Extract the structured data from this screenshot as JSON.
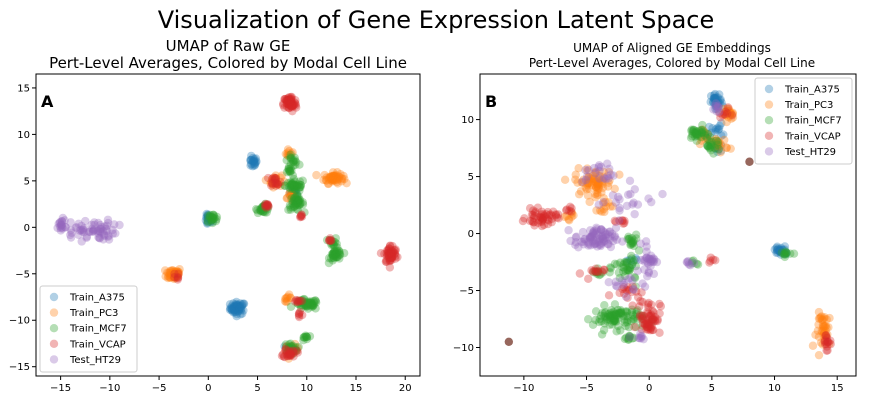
{
  "figure": {
    "suptitle": "Visualization of Gene Expression Latent Space"
  },
  "chart_data": [
    {
      "type": "scatter",
      "panel_label": "A",
      "title_line1": "UMAP of Raw GE",
      "title_line2": "Pert-Level Averages, Colored by Modal Cell Line",
      "xlim": [
        -17.5,
        21.5
      ],
      "ylim": [
        -16,
        16.5
      ],
      "xticks": [
        -15,
        -10,
        -5,
        0,
        5,
        10,
        15,
        20
      ],
      "yticks": [
        -15,
        -10,
        -5,
        0,
        5,
        10,
        15
      ],
      "legend": {
        "placement": "lower-left"
      },
      "series": [
        {
          "name": "Train_A375",
          "color": "#1f77b4",
          "clusters": [
            {
              "cx": 3.0,
              "cy": -8.7,
              "rx": 0.7,
              "ry": 0.6,
              "n": 55
            },
            {
              "cx": 4.5,
              "cy": 7.0,
              "rx": 0.4,
              "ry": 0.5,
              "n": 20
            },
            {
              "cx": 0.0,
              "cy": 0.8,
              "rx": 0.4,
              "ry": 0.6,
              "n": 20
            },
            {
              "cx": 8.7,
              "cy": 3.8,
              "rx": 0.4,
              "ry": 0.4,
              "n": 12
            },
            {
              "cx": 8.0,
              "cy": -13.0,
              "rx": 0.3,
              "ry": 0.3,
              "n": 8
            }
          ]
        },
        {
          "name": "Train_PC3",
          "color": "#ff7f0e",
          "clusters": [
            {
              "cx": -3.5,
              "cy": -5.0,
              "rx": 0.7,
              "ry": 0.6,
              "n": 50
            },
            {
              "cx": 12.7,
              "cy": 5.3,
              "rx": 0.9,
              "ry": 0.5,
              "n": 55
            },
            {
              "cx": 6.8,
              "cy": 5.0,
              "rx": 0.6,
              "ry": 0.6,
              "n": 25
            },
            {
              "cx": 8.2,
              "cy": 8.0,
              "rx": 0.4,
              "ry": 0.4,
              "n": 10
            },
            {
              "cx": 8.5,
              "cy": -13.2,
              "rx": 0.6,
              "ry": 0.5,
              "n": 25
            },
            {
              "cx": 8.0,
              "cy": -7.6,
              "rx": 0.4,
              "ry": 0.3,
              "n": 10
            },
            {
              "cx": 8.5,
              "cy": 3.2,
              "rx": 0.6,
              "ry": 0.5,
              "n": 15
            }
          ]
        },
        {
          "name": "Train_MCF7",
          "color": "#2ca02c",
          "clusters": [
            {
              "cx": 8.9,
              "cy": 2.6,
              "rx": 0.7,
              "ry": 0.7,
              "n": 40
            },
            {
              "cx": 8.8,
              "cy": 4.5,
              "rx": 0.9,
              "ry": 0.6,
              "n": 40
            },
            {
              "cx": 10.0,
              "cy": -8.3,
              "rx": 1.1,
              "ry": 0.5,
              "n": 45
            },
            {
              "cx": 13.0,
              "cy": -3.0,
              "rx": 0.6,
              "ry": 0.6,
              "n": 35
            },
            {
              "cx": 12.7,
              "cy": -1.6,
              "rx": 0.4,
              "ry": 0.4,
              "n": 12
            },
            {
              "cx": 5.6,
              "cy": 2.0,
              "rx": 0.6,
              "ry": 0.4,
              "n": 25
            },
            {
              "cx": 0.4,
              "cy": 1.0,
              "rx": 0.6,
              "ry": 0.4,
              "n": 20
            },
            {
              "cx": 8.6,
              "cy": 7.2,
              "rx": 0.5,
              "ry": 0.5,
              "n": 15
            },
            {
              "cx": 9.8,
              "cy": -11.9,
              "rx": 0.3,
              "ry": 0.4,
              "n": 10
            },
            {
              "cx": 8.4,
              "cy": -13.0,
              "rx": 0.6,
              "ry": 0.5,
              "n": 20
            },
            {
              "cx": 8.2,
              "cy": 6.2,
              "rx": 0.4,
              "ry": 0.4,
              "n": 10
            }
          ]
        },
        {
          "name": "Train_VCAP",
          "color": "#d62728",
          "clusters": [
            {
              "cx": 8.3,
              "cy": 13.3,
              "rx": 0.6,
              "ry": 0.8,
              "n": 60
            },
            {
              "cx": 18.5,
              "cy": -2.9,
              "rx": 0.6,
              "ry": 0.9,
              "n": 55
            },
            {
              "cx": 8.3,
              "cy": -13.5,
              "rx": 0.6,
              "ry": 0.5,
              "n": 25
            },
            {
              "cx": 6.8,
              "cy": 5.0,
              "rx": 0.5,
              "ry": 0.5,
              "n": 15
            },
            {
              "cx": 5.8,
              "cy": 2.3,
              "rx": 0.4,
              "ry": 0.3,
              "n": 10
            },
            {
              "cx": 9.5,
              "cy": 1.2,
              "rx": 0.3,
              "ry": 0.3,
              "n": 6
            },
            {
              "cx": 12.3,
              "cy": -1.3,
              "rx": 0.3,
              "ry": 0.3,
              "n": 6
            },
            {
              "cx": 9.2,
              "cy": -9.5,
              "rx": 0.3,
              "ry": 0.3,
              "n": 6
            },
            {
              "cx": -3.3,
              "cy": -5.3,
              "rx": 0.3,
              "ry": 0.3,
              "n": 6
            },
            {
              "cx": 9.0,
              "cy": -8.0,
              "rx": 0.4,
              "ry": 0.3,
              "n": 8
            }
          ]
        },
        {
          "name": "Test_HT29",
          "color": "#9467bd",
          "clusters": [
            {
              "cx": -12.2,
              "cy": -0.3,
              "rx": 2.6,
              "ry": 1.0,
              "n": 70
            },
            {
              "cx": -15.0,
              "cy": 0.3,
              "rx": 0.5,
              "ry": 0.6,
              "n": 10
            }
          ]
        }
      ]
    },
    {
      "type": "scatter",
      "panel_label": "B",
      "title_line1": "UMAP of Aligned GE Embeddings",
      "title_line2": "Pert-Level Averages, Colored by Modal Cell Line",
      "xlim": [
        -13.5,
        16.5
      ],
      "ylim": [
        -12.5,
        14
      ],
      "xticks": [
        -10,
        -5,
        0,
        5,
        10,
        15
      ],
      "yticks": [
        -10,
        -5,
        0,
        5,
        10
      ],
      "legend": {
        "placement": "top-right"
      },
      "series": [
        {
          "name": "Train_A375",
          "color": "#1f77b4",
          "clusters": [
            {
              "cx": 5.4,
              "cy": 11.5,
              "rx": 0.4,
              "ry": 0.7,
              "n": 35
            },
            {
              "cx": 10.5,
              "cy": -1.5,
              "rx": 0.6,
              "ry": 0.4,
              "n": 25
            },
            {
              "cx": 5.2,
              "cy": 9.0,
              "rx": 0.6,
              "ry": 0.6,
              "n": 15
            },
            {
              "cx": -1.2,
              "cy": -2.4,
              "rx": 0.6,
              "ry": 0.3,
              "n": 6
            },
            {
              "cx": 5.5,
              "cy": 7.5,
              "rx": 0.4,
              "ry": 0.4,
              "n": 8
            }
          ]
        },
        {
          "name": "Train_PC3",
          "color": "#ff7f0e",
          "clusters": [
            {
              "cx": -4.4,
              "cy": 4.5,
              "rx": 1.4,
              "ry": 1.0,
              "n": 70
            },
            {
              "cx": 6.3,
              "cy": 10.5,
              "rx": 0.4,
              "ry": 0.5,
              "n": 20
            },
            {
              "cx": 14.0,
              "cy": -8.5,
              "rx": 0.6,
              "ry": 1.4,
              "n": 40
            },
            {
              "cx": 5.5,
              "cy": 7.8,
              "rx": 0.7,
              "ry": 0.6,
              "n": 20
            },
            {
              "cx": -3.5,
              "cy": 2.5,
              "rx": 0.6,
              "ry": 0.5,
              "n": 12
            },
            {
              "cx": -6.5,
              "cy": 1.5,
              "rx": 0.5,
              "ry": 0.4,
              "n": 8
            },
            {
              "cx": 4.4,
              "cy": 8.6,
              "rx": 0.5,
              "ry": 0.5,
              "n": 10
            }
          ]
        },
        {
          "name": "Train_MCF7",
          "color": "#2ca02c",
          "clusters": [
            {
              "cx": -2.5,
              "cy": -7.4,
              "rx": 1.8,
              "ry": 0.9,
              "n": 90
            },
            {
              "cx": 3.8,
              "cy": 8.8,
              "rx": 0.7,
              "ry": 0.5,
              "n": 30
            },
            {
              "cx": 5.0,
              "cy": 7.7,
              "rx": 0.6,
              "ry": 0.5,
              "n": 20
            },
            {
              "cx": -1.7,
              "cy": -3.0,
              "rx": 1.0,
              "ry": 1.2,
              "n": 35
            },
            {
              "cx": -1.5,
              "cy": -0.8,
              "rx": 0.5,
              "ry": 0.7,
              "n": 15
            },
            {
              "cx": 10.9,
              "cy": -1.7,
              "rx": 0.4,
              "ry": 0.3,
              "n": 10
            },
            {
              "cx": 3.6,
              "cy": -2.6,
              "rx": 0.3,
              "ry": 0.3,
              "n": 5
            },
            {
              "cx": -4.2,
              "cy": -3.5,
              "rx": 0.6,
              "ry": 0.3,
              "n": 10
            },
            {
              "cx": -1.5,
              "cy": -9.2,
              "rx": 0.6,
              "ry": 0.3,
              "n": 10
            }
          ]
        },
        {
          "name": "Train_VCAP",
          "color": "#d62728",
          "clusters": [
            {
              "cx": -8.6,
              "cy": 1.4,
              "rx": 1.1,
              "ry": 0.6,
              "n": 50
            },
            {
              "cx": 0.0,
              "cy": -7.3,
              "rx": 0.8,
              "ry": 1.4,
              "n": 60
            },
            {
              "cx": 14.2,
              "cy": -9.6,
              "rx": 0.4,
              "ry": 0.8,
              "n": 15
            },
            {
              "cx": -1.8,
              "cy": -5.0,
              "rx": 1.0,
              "ry": 0.5,
              "n": 15
            },
            {
              "cx": -4.5,
              "cy": -3.5,
              "rx": 0.8,
              "ry": 0.5,
              "n": 12
            },
            {
              "cx": 4.8,
              "cy": -2.3,
              "rx": 0.3,
              "ry": 0.3,
              "n": 5
            },
            {
              "cx": -2.3,
              "cy": 1.1,
              "rx": 0.8,
              "ry": 0.4,
              "n": 8
            },
            {
              "cx": -6.5,
              "cy": 2.0,
              "rx": 0.5,
              "ry": 0.3,
              "n": 6
            },
            {
              "cx": 6.0,
              "cy": 10.6,
              "rx": 0.4,
              "ry": 0.4,
              "n": 8
            }
          ]
        },
        {
          "name": "Test_HT29",
          "color": "#9467bd",
          "clusters": [
            {
              "cx": -4.3,
              "cy": -0.5,
              "rx": 1.5,
              "ry": 0.9,
              "n": 80
            },
            {
              "cx": 0.0,
              "cy": -2.2,
              "rx": 0.5,
              "ry": 1.3,
              "n": 30
            },
            {
              "cx": -4.0,
              "cy": 5.2,
              "rx": 1.2,
              "ry": 0.9,
              "n": 20
            },
            {
              "cx": -2.0,
              "cy": 3.0,
              "rx": 2.0,
              "ry": 1.4,
              "n": 20
            },
            {
              "cx": 1.0,
              "cy": 3.4,
              "rx": 0.2,
              "ry": 0.2,
              "n": 1
            },
            {
              "cx": -1.5,
              "cy": -4.5,
              "rx": 1.2,
              "ry": 0.8,
              "n": 15
            },
            {
              "cx": 3.5,
              "cy": -2.6,
              "rx": 0.7,
              "ry": 0.3,
              "n": 6
            },
            {
              "cx": 5.3,
              "cy": 11.0,
              "rx": 0.4,
              "ry": 0.6,
              "n": 8
            },
            {
              "cx": -1.0,
              "cy": -9.0,
              "rx": 1.0,
              "ry": 0.5,
              "n": 8
            }
          ]
        }
      ],
      "extra_points": [
        {
          "color": "#8c564b",
          "x": -11.2,
          "y": -9.5
        },
        {
          "color": "#8c564b",
          "x": 8.0,
          "y": 6.3
        }
      ]
    }
  ]
}
